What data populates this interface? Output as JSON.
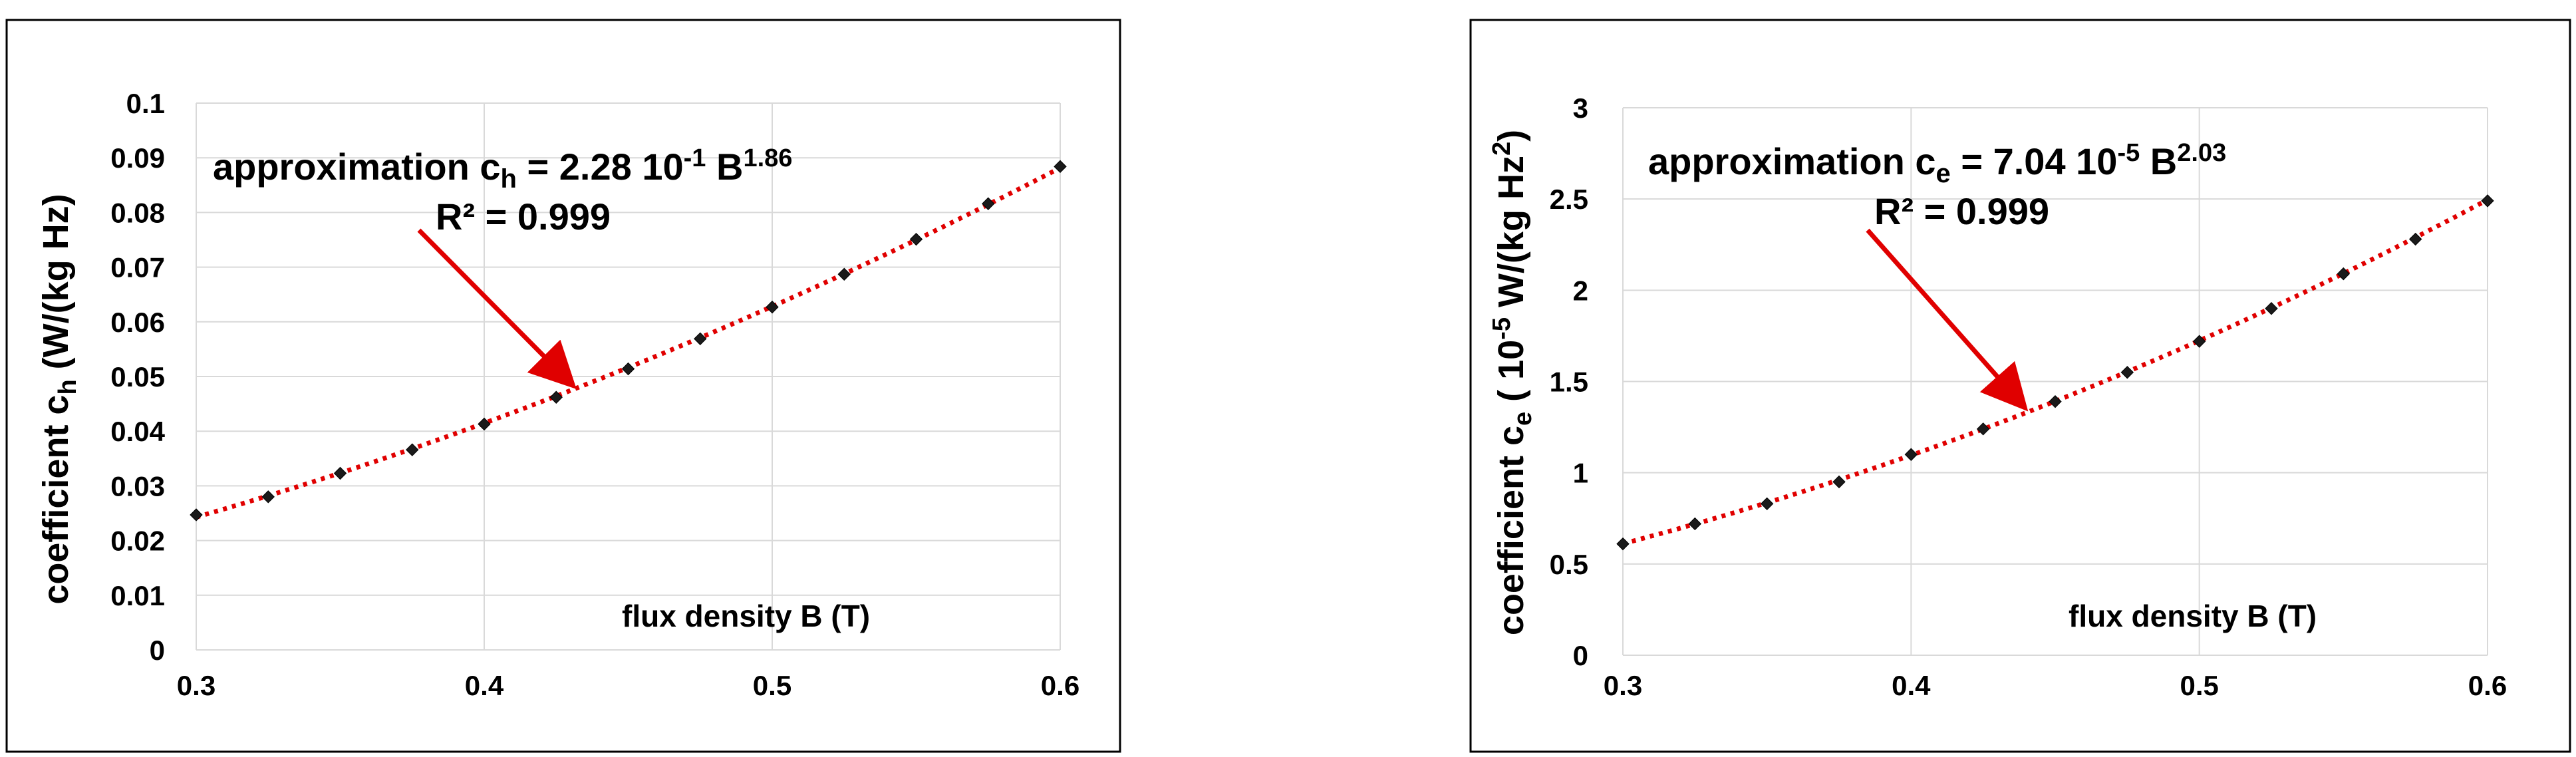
{
  "colors": {
    "trend": "#e00000",
    "marker": "#1a1a1a",
    "grid": "#d9d9d9",
    "frame": "#000000"
  },
  "chart_data": [
    {
      "type": "scatter",
      "xlabel": "flux density B (T)",
      "ylabel": {
        "pre": "coefficient c",
        "sub": "h",
        "post": " (W/(kg Hz)"
      },
      "xlim": [
        0.3,
        0.6
      ],
      "ylim": [
        0,
        0.1
      ],
      "xticks": [
        "0.3",
        "0.4",
        "0.5",
        "0.6"
      ],
      "yticks": [
        "0",
        "0.01",
        "0.02",
        "0.03",
        "0.04",
        "0.05",
        "0.06",
        "0.07",
        "0.08",
        "0.09",
        "0.1"
      ],
      "grid": true,
      "trendline": {
        "coef": 0.228,
        "exp": 1.86,
        "style": "dotted"
      },
      "annotation": {
        "line1": {
          "a": "approximation c",
          "sub": "h",
          "b": " = 2.28 10",
          "sup": "-1",
          "c": " B",
          "sup2": "1.86"
        },
        "line2": "R² = 0.999",
        "arrow": true
      },
      "x": [
        0.3,
        0.325,
        0.35,
        0.375,
        0.4,
        0.425,
        0.45,
        0.475,
        0.5,
        0.525,
        0.55,
        0.575,
        0.6
      ],
      "y": [
        0.0247,
        0.028,
        0.0323,
        0.0366,
        0.0413,
        0.0462,
        0.0514,
        0.0569,
        0.0627,
        0.0687,
        0.0751,
        0.0816,
        0.0884
      ]
    },
    {
      "type": "scatter",
      "xlabel": "flux density B (T)",
      "ylabel": {
        "pre": "coefficient c",
        "sub": "e",
        "mid": " ( 10",
        "sup": "-5",
        "post": " W/(kg Hz",
        "sup2": "2",
        "end": ")"
      },
      "xlim": [
        0.3,
        0.6
      ],
      "ylim": [
        0,
        3
      ],
      "xticks": [
        "0.3",
        "0.4",
        "0.5",
        "0.6"
      ],
      "yticks": [
        "0",
        "0.5",
        "1",
        "1.5",
        "2",
        "2.5",
        "3"
      ],
      "grid": true,
      "trendline": {
        "coef": 7.04,
        "exp": 2.03,
        "style": "dotted"
      },
      "annotation": {
        "line1": {
          "a": "approximation c",
          "sub": "e",
          "b": " = 7.04 10",
          "sup": "-5",
          "c": " B",
          "sup2": "2.03"
        },
        "line2": "R² = 0.999",
        "arrow": true
      },
      "x": [
        0.3,
        0.325,
        0.35,
        0.375,
        0.4,
        0.425,
        0.45,
        0.475,
        0.5,
        0.525,
        0.55,
        0.575,
        0.6
      ],
      "y": [
        0.61,
        0.72,
        0.83,
        0.95,
        1.1,
        1.24,
        1.39,
        1.55,
        1.72,
        1.9,
        2.09,
        2.28,
        2.49
      ]
    }
  ]
}
